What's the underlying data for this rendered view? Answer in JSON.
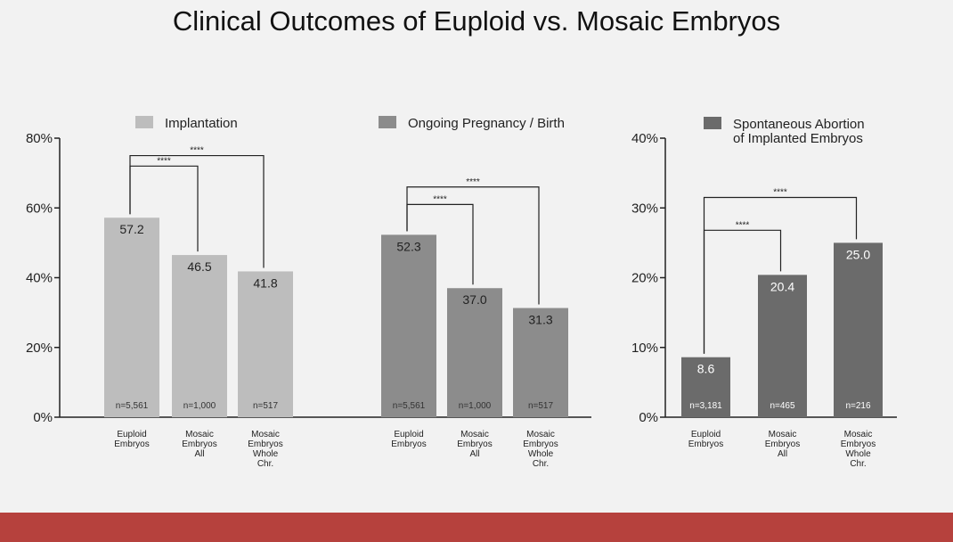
{
  "slide": {
    "title": "Clinical Outcomes of Euploid vs. Mosaic Embryos",
    "footer_color": "#b6413d",
    "background_color": "#f2f2f2"
  },
  "chart_data": [
    {
      "type": "bar",
      "panel": "implantation",
      "legend": "Implantation",
      "color": "#bdbdbd",
      "categories": [
        "Euploid\nEmbryos",
        "Mosaic\nEmbryos\nAll",
        "Mosaic\nEmbryos\nWhole\nChr."
      ],
      "values": [
        57.2,
        46.5,
        41.8
      ],
      "value_labels": [
        "57.2",
        "46.5",
        "41.8"
      ],
      "n_labels": [
        "n=5,561",
        "n=1,000",
        "n=517"
      ],
      "ylim": [
        0,
        80
      ],
      "yticks": [
        "0%",
        "20%",
        "40%",
        "60%",
        "80%"
      ],
      "ytick_values": [
        0,
        20,
        40,
        60,
        80
      ],
      "significance": [
        {
          "from": 0,
          "to": 1,
          "label": "****",
          "level": 72
        },
        {
          "from": 0,
          "to": 2,
          "label": "****",
          "level": 75
        }
      ]
    },
    {
      "type": "bar",
      "panel": "ongoing",
      "legend": "Ongoing Pregnancy / Birth",
      "color": "#8c8c8c",
      "categories": [
        "Euploid\nEmbryos",
        "Mosaic\nEmbryos\nAll",
        "Mosaic\nEmbryos\nWhole\nChr."
      ],
      "values": [
        52.3,
        37.0,
        31.3
      ],
      "value_labels": [
        "52.3",
        "37.0",
        "31.3"
      ],
      "n_labels": [
        "n=5,561",
        "n=1,000",
        "n=517"
      ],
      "ylim": [
        0,
        80
      ],
      "significance": [
        {
          "from": 0,
          "to": 1,
          "label": "****",
          "level": 61
        },
        {
          "from": 0,
          "to": 2,
          "label": "****",
          "level": 66
        }
      ]
    },
    {
      "type": "bar",
      "panel": "abortion",
      "legend": "Spontaneous Abortion\nof Implanted Embryos",
      "color": "#6b6b6b",
      "categories": [
        "Euploid\nEmbryos",
        "Mosaic\nEmbryos\nAll",
        "Mosaic\nEmbryos\nWhole\nChr."
      ],
      "values": [
        8.6,
        20.4,
        25.0
      ],
      "value_labels": [
        "8.6",
        "20.4",
        "25.0"
      ],
      "n_labels": [
        "n=3,181",
        "n=465",
        "n=216"
      ],
      "ylim": [
        0,
        40
      ],
      "yticks": [
        "0%",
        "10%",
        "20%",
        "30%",
        "40%"
      ],
      "ytick_values": [
        0,
        10,
        20,
        30,
        40
      ],
      "significance": [
        {
          "from": 0,
          "to": 1,
          "label": "****",
          "level": 26.8
        },
        {
          "from": 0,
          "to": 2,
          "label": "****",
          "level": 31.5
        }
      ]
    }
  ]
}
